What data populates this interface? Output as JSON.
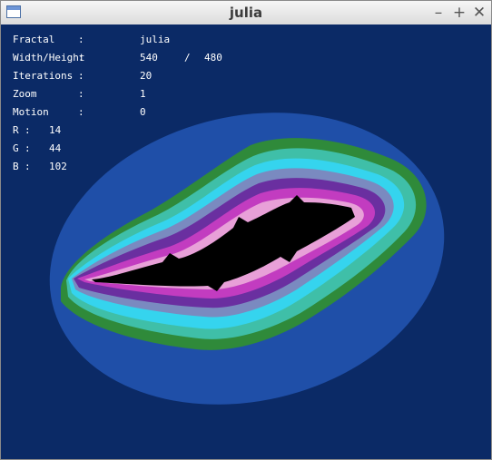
{
  "window": {
    "title": "julia",
    "buttons": {
      "minimize": "–",
      "maximize": "+",
      "close": "✕"
    }
  },
  "overlay": {
    "rows": [
      {
        "label": "Fractal",
        "sep": ":",
        "value": "julia"
      },
      {
        "label": "Width/Height",
        "sep": ":",
        "value": "540",
        "value_sep": "/",
        "value2": "480"
      },
      {
        "label": "Iterations",
        "sep": ":",
        "value": "20"
      },
      {
        "label": "Zoom",
        "sep": ":",
        "value": "1"
      },
      {
        "label": "Motion",
        "sep": ":",
        "value": "0"
      }
    ],
    "rgb": [
      {
        "label": "R",
        "sep": ":",
        "value": "14"
      },
      {
        "label": "G",
        "sep": ":",
        "value": "44"
      },
      {
        "label": "B",
        "sep": ":",
        "value": "102"
      }
    ]
  },
  "palette": {
    "outer": "#0b2a66",
    "ring2": "#1f4fa8",
    "ring3": "#2f8a3a",
    "ring4": "#3fbfa8",
    "ring5": "#35d4ee",
    "ring6": "#7a8ac0",
    "ring7": "#6a2fa0",
    "ring8": "#c23cc0",
    "ring9": "#e8a0d8",
    "core": "#000000"
  }
}
